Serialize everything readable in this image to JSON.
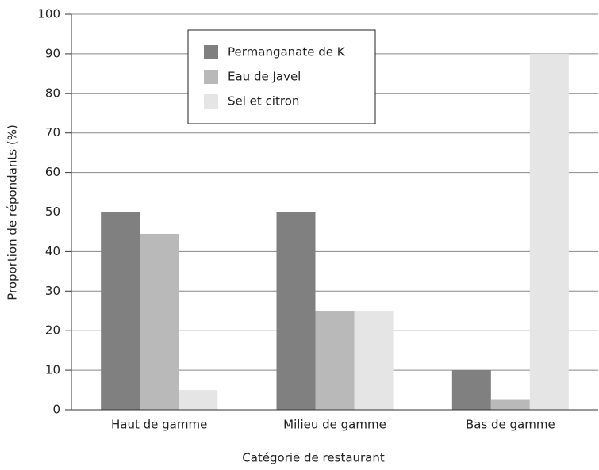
{
  "chart_data": {
    "type": "bar",
    "xlabel": "Catégorie de restaurant",
    "ylabel": "Proportion de répondants (%)",
    "categories": [
      "Haut de gamme",
      "Milieu de gamme",
      "Bas de gamme"
    ],
    "series": [
      {
        "name": "Permanganate de K",
        "color": "#808080",
        "values": [
          50,
          50,
          10
        ]
      },
      {
        "name": "Eau de Javel",
        "color": "#b9b9ba",
        "values": [
          44.5,
          25,
          2.5
        ]
      },
      {
        "name": "Sel et citron",
        "color": "#e5e5e6",
        "values": [
          5,
          25,
          90
        ]
      }
    ],
    "ylim": [
      0,
      100
    ],
    "yticks": [
      0,
      10,
      20,
      30,
      40,
      50,
      60,
      70,
      80,
      90,
      100
    ],
    "grid": true,
    "legend": "top"
  }
}
